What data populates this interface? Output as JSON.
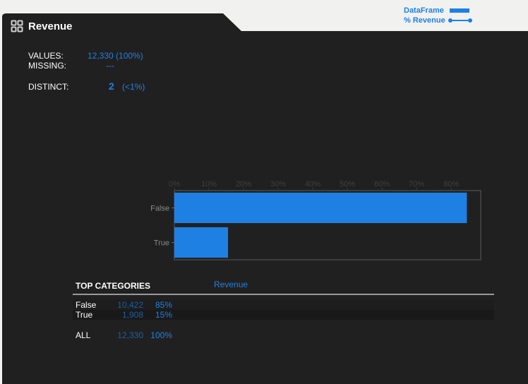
{
  "legend": {
    "dataframe_label": "DataFrame",
    "revenue_label": "% Revenue"
  },
  "title": "Revenue",
  "stats": {
    "values_label": "VALUES:",
    "values_value": "12,330 (100%)",
    "missing_label": "MISSING:",
    "missing_value": "---",
    "distinct_label": "DISTINCT:",
    "distinct_count": "2",
    "distinct_pct": "(<1%)"
  },
  "colors": {
    "panel": "#212020",
    "accent": "#1f80e4",
    "page": "#f1f1ef"
  },
  "chart_data": {
    "type": "bar",
    "orientation": "horizontal",
    "categories": [
      "False",
      "True"
    ],
    "values": [
      84.5,
      15.5
    ],
    "x_ticks": [
      "0%",
      "10%",
      "20%",
      "30%",
      "40%",
      "50%",
      "60%",
      "70%",
      "80%"
    ],
    "xlim": [
      0,
      88.5
    ],
    "grid": false
  },
  "top_categories": {
    "header": "TOP CATEGORIES",
    "column_label": "Revenue",
    "rows": [
      {
        "category": "False",
        "count": "10,422",
        "percent": "85%"
      },
      {
        "category": "True",
        "count": "1,908",
        "percent": "15%"
      }
    ],
    "total": {
      "category": "ALL",
      "count": "12,330",
      "percent": "100%"
    }
  }
}
